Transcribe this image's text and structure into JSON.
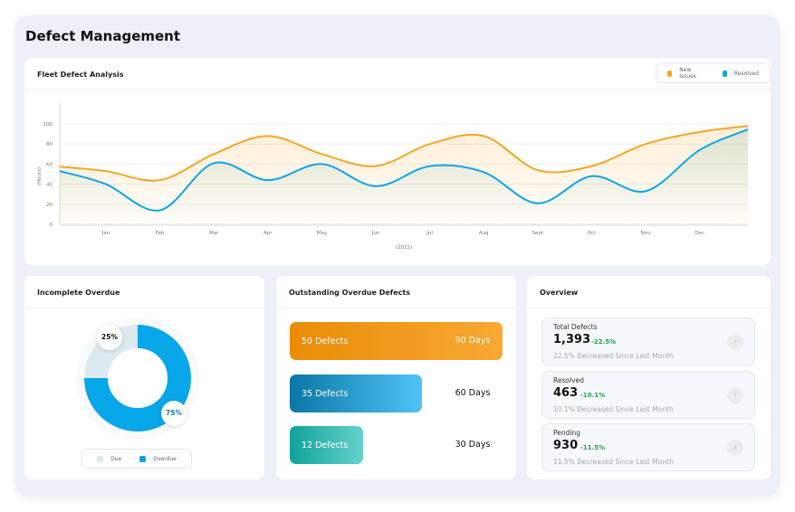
{
  "page_title": "Defect Management",
  "fleet": {
    "title": "Fleet Defect Analysis",
    "legend": [
      {
        "label": "New Issues",
        "color": "#f5a623"
      },
      {
        "label": "Resolved",
        "color": "#0ea5e9"
      }
    ]
  },
  "chart_data": {
    "type": "line",
    "title": "Fleet Defect Analysis",
    "x": [
      "Jan",
      "Feb",
      "Mar",
      "Apr",
      "May",
      "Jun",
      "Jul",
      "Aug",
      "Sept",
      "Oct",
      "Nov",
      "Dec"
    ],
    "xlabel": "(2022)",
    "ylabel": "(Hours)",
    "ylim": [
      0,
      100
    ],
    "yticks": [
      0,
      20,
      40,
      60,
      80,
      100
    ],
    "grid": true,
    "legend": "top-right",
    "smooth": true,
    "series": [
      {
        "name": "New Issues",
        "color": "#f5a623",
        "values": [
          53,
          44,
          70,
          88,
          70,
          58,
          80,
          88,
          54,
          58,
          80,
          92
        ]
      },
      {
        "name": "Resolved",
        "color": "#0ea5e9",
        "values": [
          40,
          14,
          61,
          44,
          60,
          38,
          58,
          52,
          21,
          48,
          33,
          74
        ]
      }
    ]
  },
  "incomplete": {
    "title": "Incomplete Overdue",
    "slices": [
      {
        "label": "Due",
        "value": 25,
        "pct_label": "25%",
        "color": "#dbe9f0"
      },
      {
        "label": "Overdue",
        "value": 75,
        "pct_label": "75%",
        "color": "#07a6e8"
      }
    ]
  },
  "outstanding": {
    "title": "Outstanding Overdue Defects",
    "rows": [
      {
        "defects": "50 Defects",
        "days": "90 Days",
        "count": 50
      },
      {
        "defects": "35 Defects",
        "days": "60 Days",
        "count": 35
      },
      {
        "defects": "12 Defects",
        "days": "30 Days",
        "count": 12
      }
    ]
  },
  "overview": {
    "title": "Overview",
    "items": [
      {
        "label": "Total Defects",
        "value": "1,393",
        "change": "-22.5%",
        "sub": "22.5% Decreased Since Last Month"
      },
      {
        "label": "Resolved",
        "value": "463",
        "change": "-10.1%",
        "sub": "10.1% Decreased Since Last Month"
      },
      {
        "label": "Pending",
        "value": "930",
        "change": "-11.5%",
        "sub": "11.5% Decreased Since Last Month"
      }
    ]
  }
}
